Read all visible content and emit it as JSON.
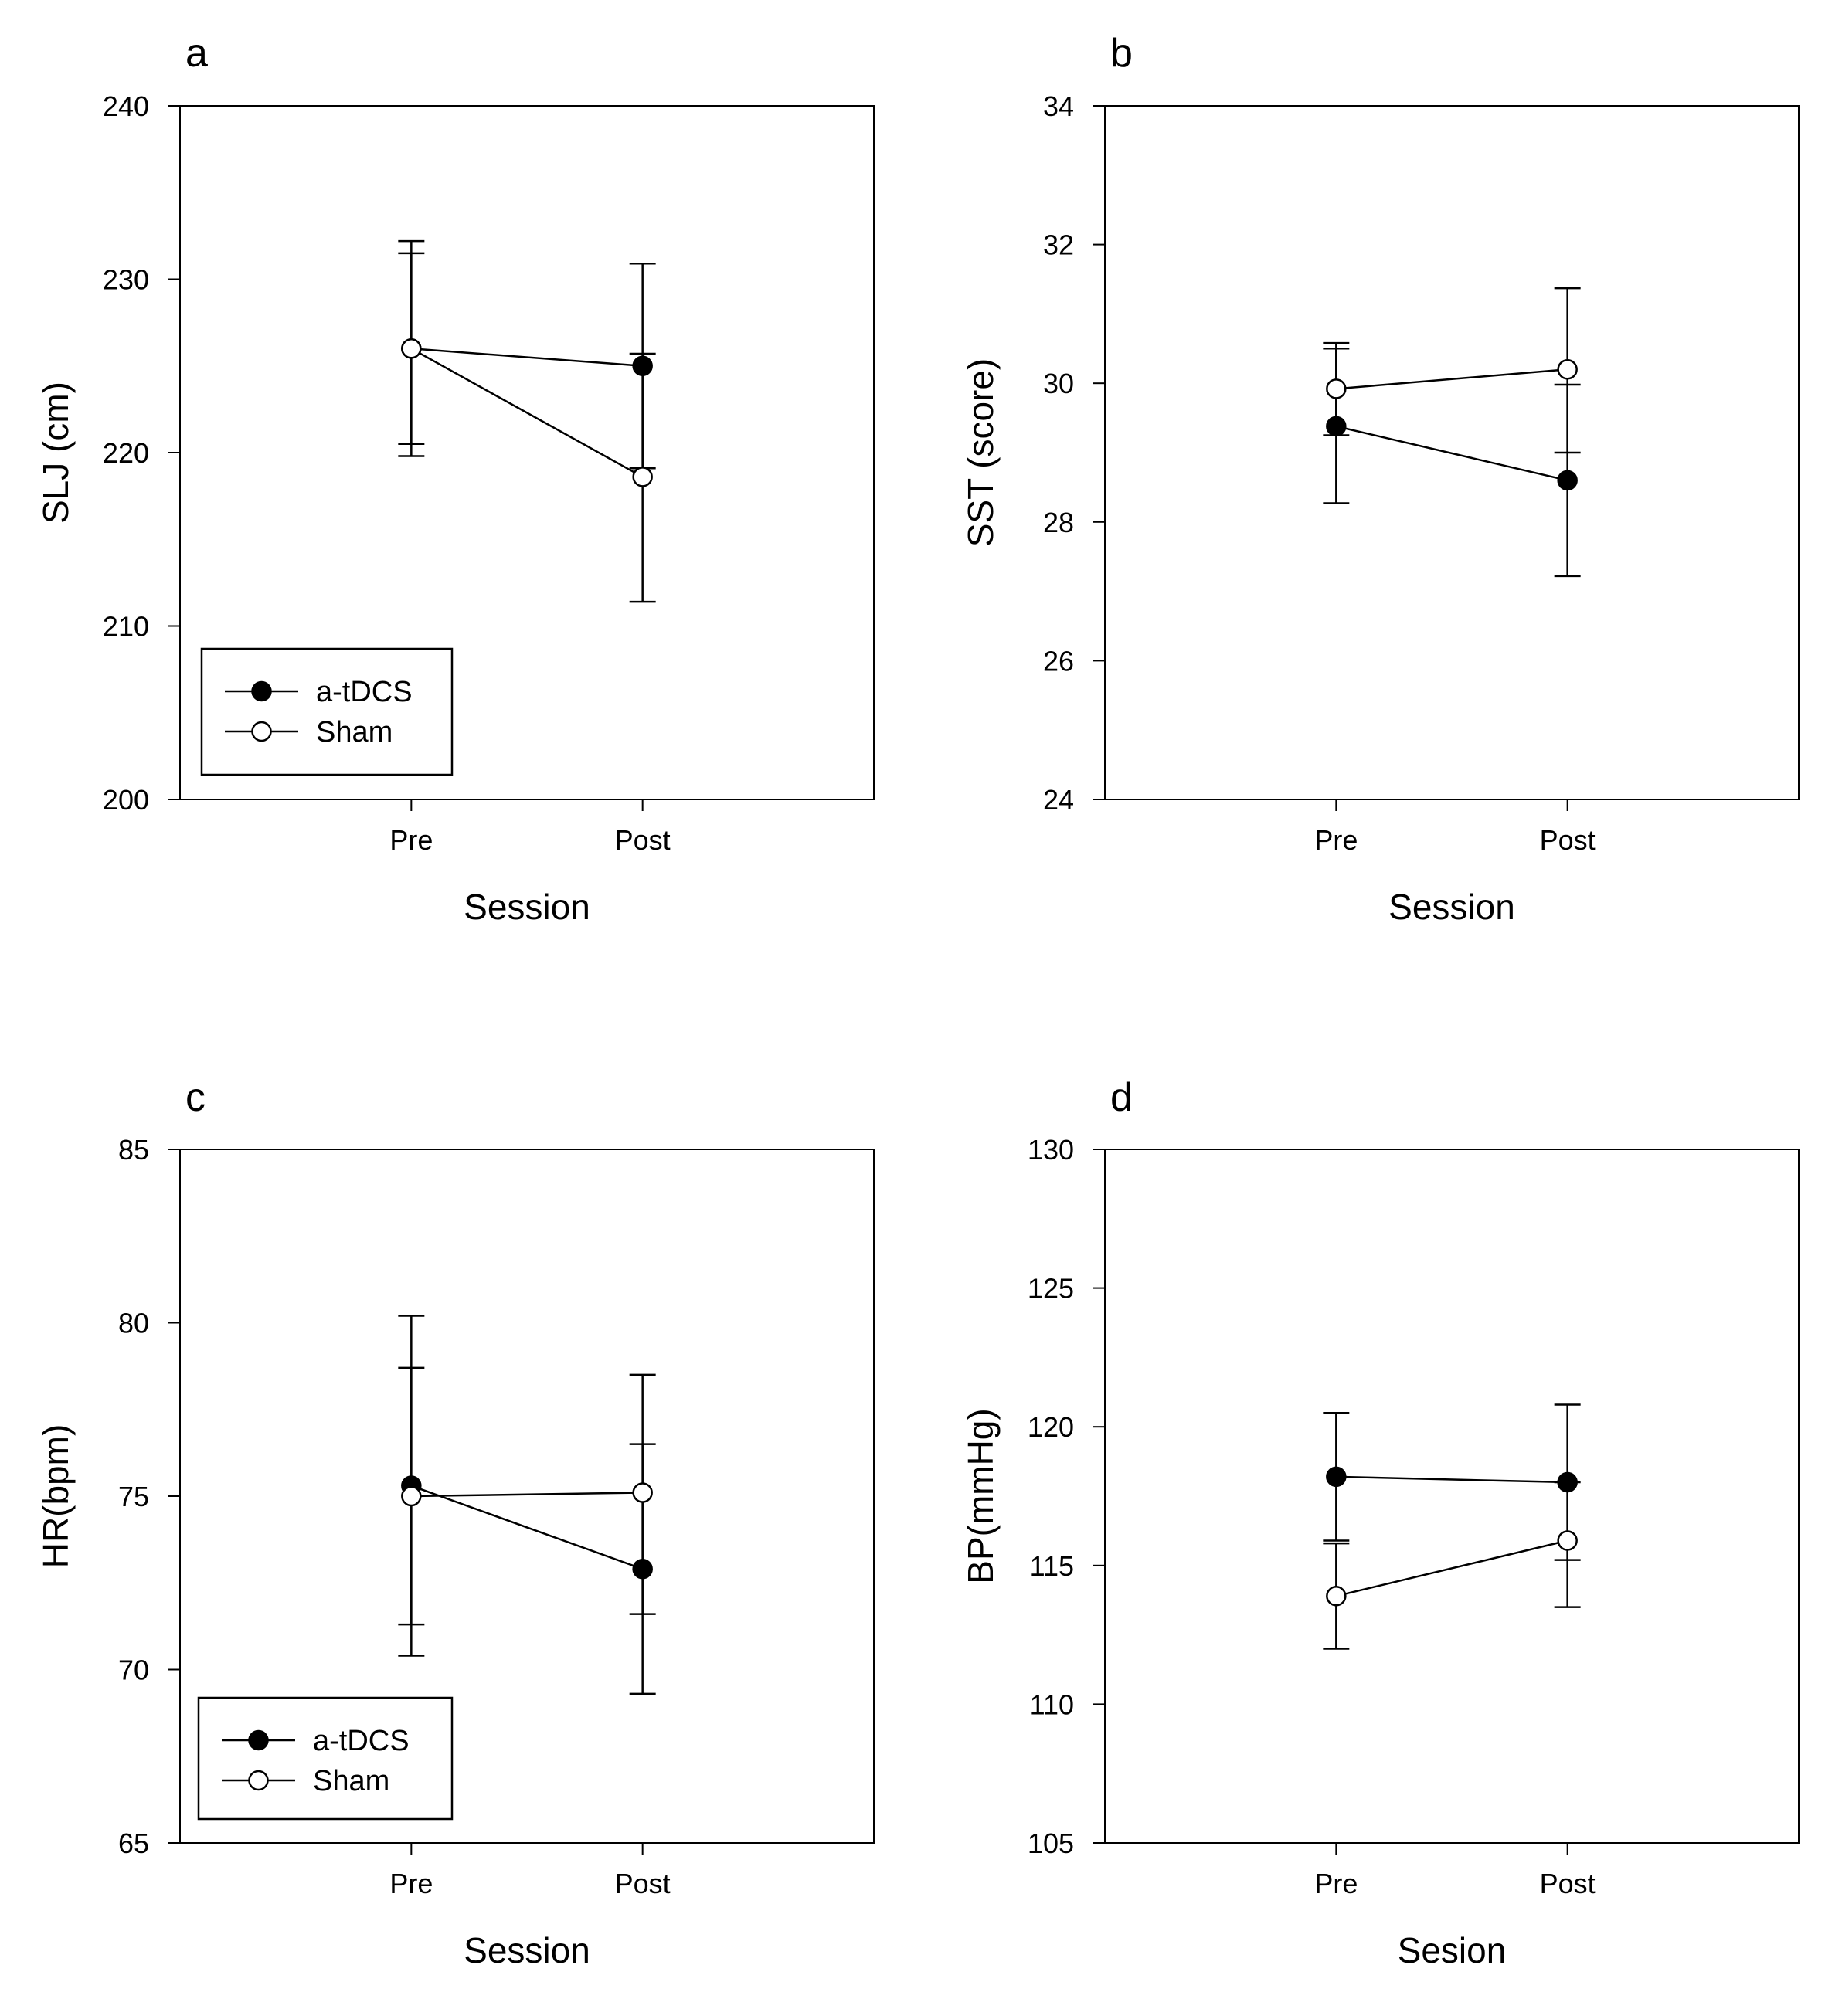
{
  "chart_data": [
    {
      "type": "line",
      "panel_label": "a",
      "xlabel": "Session",
      "ylabel": "SLJ (cm)",
      "categories": [
        "Pre",
        "Post"
      ],
      "ylim": [
        200,
        240
      ],
      "yticks": [
        200,
        210,
        220,
        230,
        240
      ],
      "grid": false,
      "legend": "bottom-left",
      "series": [
        {
          "name": "a-tDCS",
          "marker": "filled",
          "values": [
            226.0,
            225.0
          ],
          "err_upper": [
            232.2,
            230.9
          ],
          "err_lower": [
            219.8,
            219.1
          ]
        },
        {
          "name": "Sham",
          "marker": "open",
          "values": [
            226.0,
            218.6
          ],
          "err_upper": [
            231.5,
            225.7
          ],
          "err_lower": [
            220.5,
            211.4
          ]
        }
      ]
    },
    {
      "type": "line",
      "panel_label": "b",
      "xlabel": "Session",
      "ylabel": "SST (score)",
      "categories": [
        "Pre",
        "Post"
      ],
      "ylim": [
        24,
        34
      ],
      "yticks": [
        24,
        26,
        28,
        30,
        32,
        34
      ],
      "grid": false,
      "series": [
        {
          "name": "a-tDCS",
          "marker": "filled",
          "values": [
            29.38,
            28.6
          ],
          "err_upper": [
            30.5,
            29.98
          ],
          "err_lower": [
            28.27,
            27.22
          ]
        },
        {
          "name": "Sham",
          "marker": "open",
          "values": [
            29.92,
            30.2
          ],
          "err_upper": [
            30.58,
            31.37
          ],
          "err_lower": [
            29.25,
            29.0
          ]
        }
      ]
    },
    {
      "type": "line",
      "panel_label": "c",
      "xlabel": "Session",
      "ylabel": "HR(bpm)",
      "categories": [
        "Pre",
        "Post"
      ],
      "ylim": [
        65,
        85
      ],
      "yticks": [
        65,
        70,
        75,
        80,
        85
      ],
      "grid": false,
      "legend": "bottom-left",
      "series": [
        {
          "name": "a-tDCS",
          "marker": "filled",
          "values": [
            75.3,
            72.9
          ],
          "err_upper": [
            80.2,
            76.5
          ],
          "err_lower": [
            70.4,
            69.3
          ]
        },
        {
          "name": "Sham",
          "marker": "open",
          "values": [
            75.0,
            75.1
          ],
          "err_upper": [
            78.7,
            78.5
          ],
          "err_lower": [
            71.3,
            71.6
          ]
        }
      ]
    },
    {
      "type": "line",
      "panel_label": "d",
      "xlabel": "Sesion",
      "ylabel": "BP(mmHg)",
      "categories": [
        "Pre",
        "Post"
      ],
      "ylim": [
        105,
        130
      ],
      "yticks": [
        105,
        110,
        115,
        120,
        125,
        130
      ],
      "grid": false,
      "series": [
        {
          "name": "a-tDCS",
          "marker": "filled",
          "values": [
            118.2,
            118.0
          ],
          "err_upper": [
            120.5,
            120.8
          ],
          "err_lower": [
            115.9,
            115.2
          ]
        },
        {
          "name": "Sham",
          "marker": "open",
          "values": [
            113.9,
            115.9
          ],
          "err_upper": [
            115.8,
            118.0
          ],
          "err_lower": [
            112.0,
            113.5
          ]
        }
      ]
    }
  ]
}
